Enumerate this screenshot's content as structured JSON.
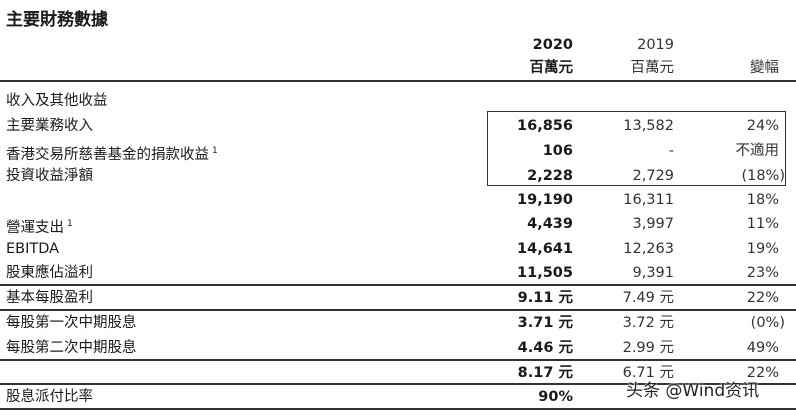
{
  "title": "主要財務數據",
  "header": {
    "year_2020": "2020",
    "year_2019": "2019",
    "unit_2020": "百萬元",
    "unit_2019": "百萬元",
    "change": "變幅"
  },
  "rows": [
    {
      "label": "收入及其他收益",
      "sup": "",
      "v2020": "",
      "v2019": "",
      "change": ""
    },
    {
      "label": "主要業務收入",
      "sup": "",
      "v2020": "16,856",
      "v2019": "13,582",
      "change": "24%"
    },
    {
      "label": "香港交易所慈善基金的捐款收益",
      "sup": "1",
      "v2020": "106",
      "v2019": "-",
      "change": "不適用"
    },
    {
      "label": "投資收益淨額",
      "sup": "",
      "v2020": "2,228",
      "v2019": "2,729",
      "change": "(18%)"
    },
    {
      "label": "",
      "sup": "",
      "v2020": "19,190",
      "v2019": "16,311",
      "change": "18%"
    },
    {
      "label": "營運支出",
      "sup": "1",
      "v2020": "4,439",
      "v2019": "3,997",
      "change": "11%"
    },
    {
      "label": "EBITDA",
      "sup": "",
      "v2020": "14,641",
      "v2019": "12,263",
      "change": "19%"
    },
    {
      "label": "股東應佔溢利",
      "sup": "",
      "v2020": "11,505",
      "v2019": "9,391",
      "change": "23%"
    },
    {
      "label": "基本每股盈利",
      "sup": "",
      "v2020": "9.11 元",
      "v2019": "7.49 元",
      "change": "22%"
    },
    {
      "label": "每股第一次中期股息",
      "sup": "",
      "v2020": "3.71 元",
      "v2019": "3.72 元",
      "change": "(0%)"
    },
    {
      "label": "每股第二次中期股息",
      "sup": "",
      "v2020": "4.46 元",
      "v2019": "2.99 元",
      "change": "49%"
    },
    {
      "label": "",
      "sup": "",
      "v2020": "8.17 元",
      "v2019": "6.71 元",
      "change": "22%"
    },
    {
      "label": "股息派付比率",
      "sup": "",
      "v2020": "90%",
      "v2019": "",
      "change": ""
    }
  ],
  "watermark": "头条 @Wind资讯"
}
